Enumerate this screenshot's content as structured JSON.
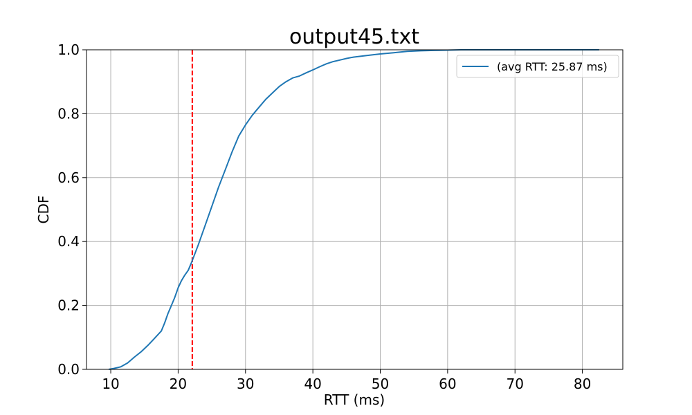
{
  "chart_data": {
    "type": "line",
    "title": "output45.txt",
    "xlabel": "RTT (ms)",
    "ylabel": "CDF",
    "xlim": [
      6.4,
      86.0
    ],
    "ylim": [
      0.0,
      1.0
    ],
    "xticks": [
      10,
      20,
      30,
      40,
      50,
      60,
      70,
      80
    ],
    "yticks": [
      0.0,
      0.2,
      0.4,
      0.6,
      0.8,
      1.0
    ],
    "xtick_labels": [
      "10",
      "20",
      "30",
      "40",
      "50",
      "60",
      "70",
      "80"
    ],
    "ytick_labels": [
      "0.0",
      "0.2",
      "0.4",
      "0.6",
      "0.8",
      "1.0"
    ],
    "grid": true,
    "legend_position": "top-right",
    "series": [
      {
        "name": "(avg RTT: 25.87 ms)",
        "color": "#1f77b4",
        "x": [
          9.7,
          10.5,
          11.5,
          12.5,
          13.5,
          14.5,
          15.5,
          16.5,
          17.5,
          18.0,
          18.5,
          19.0,
          19.5,
          20.0,
          20.5,
          21.0,
          21.5,
          22.0,
          23.0,
          24.0,
          25.0,
          26.0,
          27.0,
          28.0,
          29.0,
          30.0,
          31.0,
          32.0,
          33.0,
          34.0,
          35.0,
          36.0,
          37.0,
          38.0,
          39.0,
          40.0,
          41.0,
          42.0,
          43.0,
          44.0,
          45.0,
          46.0,
          48.0,
          50.0,
          52.0,
          54.0,
          56.0,
          58.0,
          60.0,
          62.0,
          66.0,
          70.0,
          75.0,
          80.0,
          82.5
        ],
        "y": [
          0.0,
          0.003,
          0.008,
          0.02,
          0.038,
          0.055,
          0.075,
          0.097,
          0.12,
          0.145,
          0.175,
          0.2,
          0.225,
          0.255,
          0.278,
          0.295,
          0.31,
          0.335,
          0.39,
          0.45,
          0.51,
          0.57,
          0.625,
          0.68,
          0.73,
          0.765,
          0.795,
          0.82,
          0.845,
          0.865,
          0.885,
          0.9,
          0.912,
          0.918,
          0.928,
          0.937,
          0.947,
          0.956,
          0.963,
          0.968,
          0.973,
          0.977,
          0.982,
          0.987,
          0.991,
          0.995,
          0.997,
          0.998,
          0.999,
          1.0,
          1.0,
          1.0,
          1.0,
          1.0,
          1.0
        ]
      }
    ],
    "vlines": [
      {
        "x": 22.1,
        "color": "#ff0000",
        "style": "dashed"
      }
    ]
  }
}
